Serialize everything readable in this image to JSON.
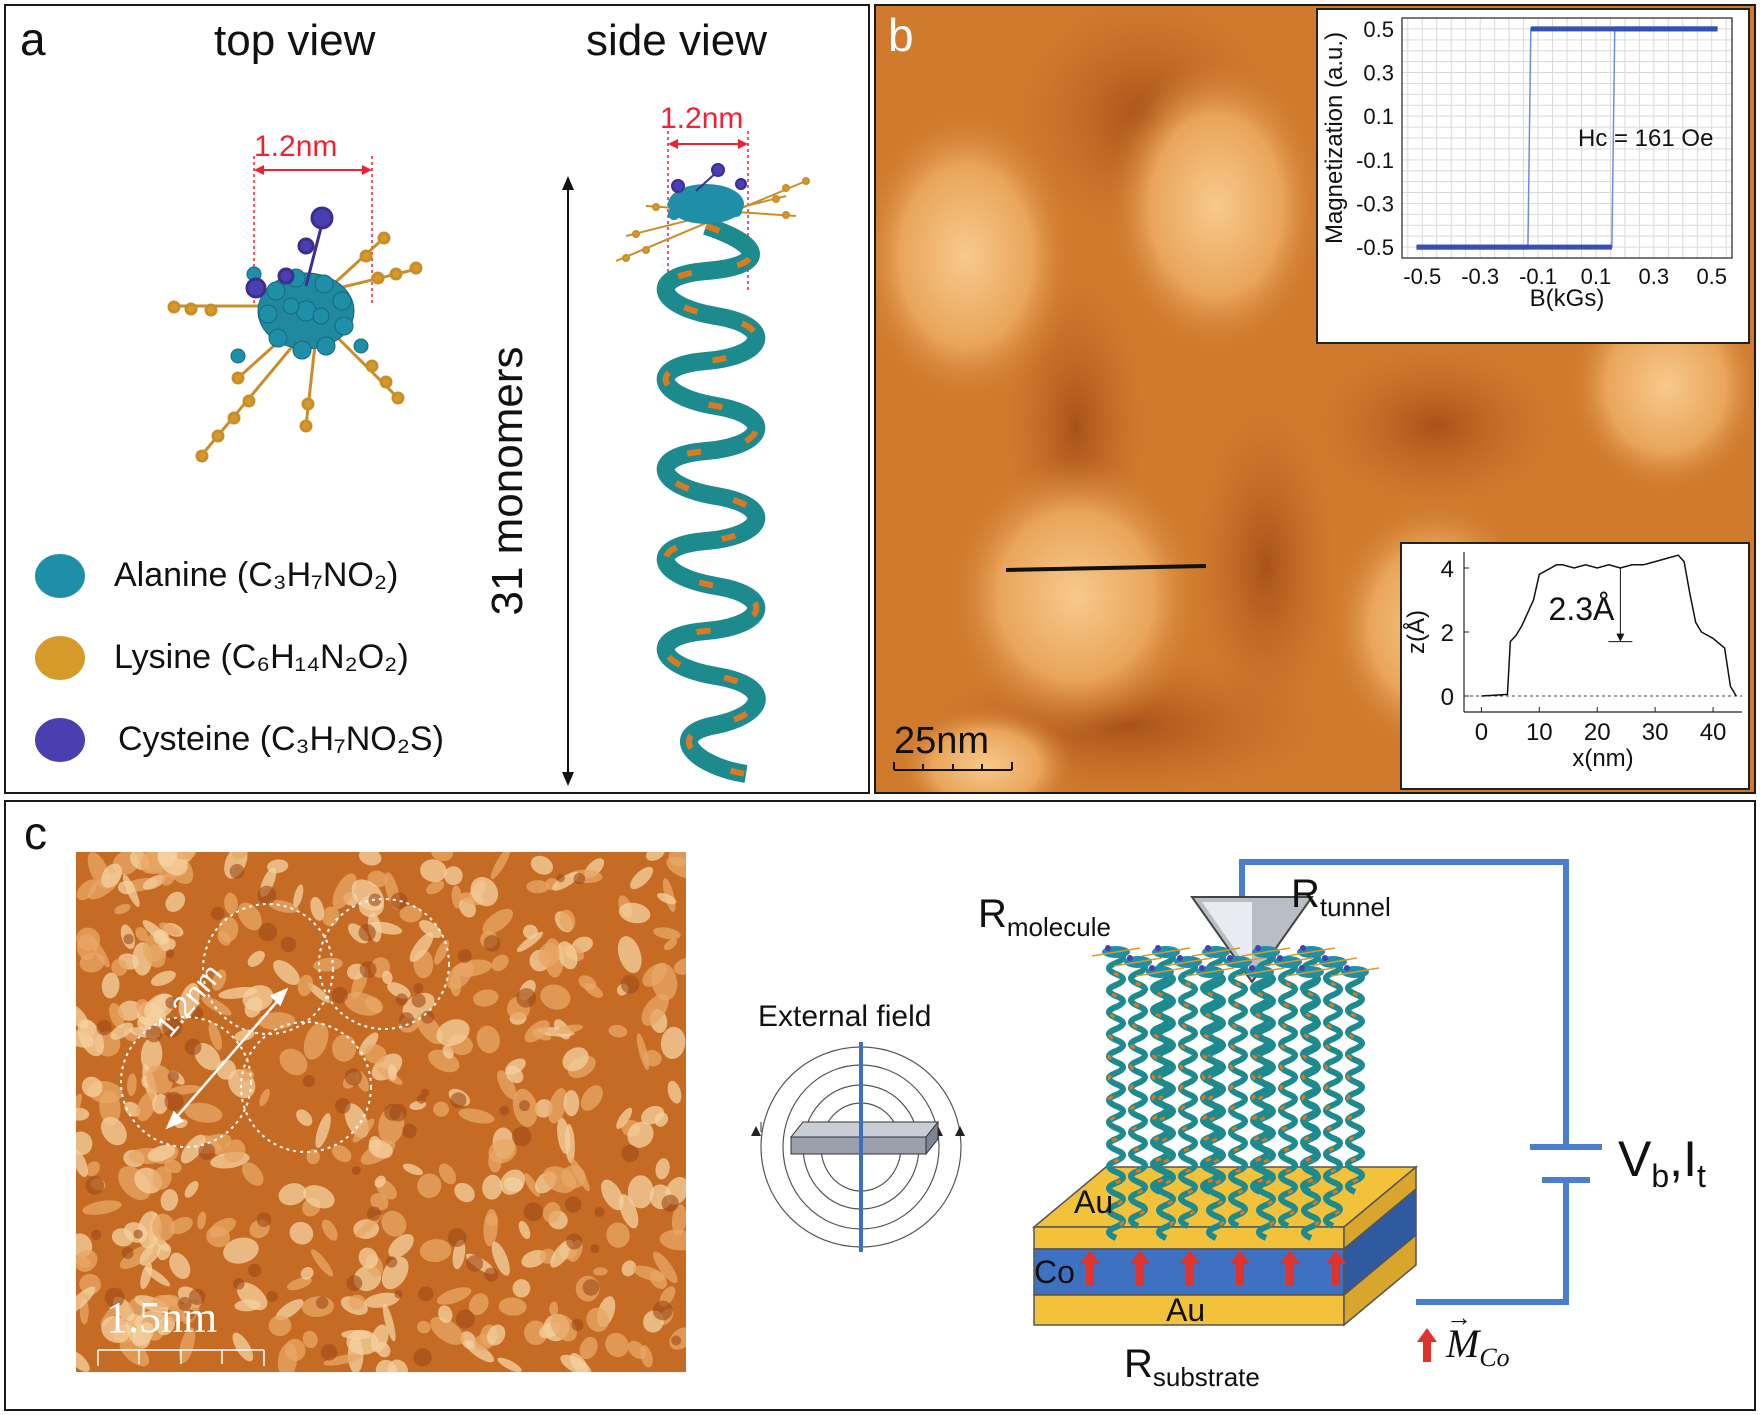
{
  "panel_a": {
    "label": "a",
    "top_view": "top view",
    "side_view": "side view",
    "width_top": "1.2nm",
    "width_side": "1.2nm",
    "length_label": "31 monomers",
    "legend": [
      {
        "name": "Alanine",
        "formula": "(C₃H₇NO₂)",
        "color": "#1f8fa8"
      },
      {
        "name": "Lysine",
        "formula": "(C₆H₁₄N₂O₂)",
        "color": "#d69a2a"
      },
      {
        "name": "Cysteine",
        "formula": "(C₃H₇NO₂S)",
        "color": "#4a3fb0"
      }
    ]
  },
  "panel_b": {
    "label": "b",
    "scale_bar": "25nm",
    "hysteresis": {
      "ylabel": "Magnetization (a.u.)",
      "xlabel": "B(kGs)",
      "yticks": [
        "0.5",
        "0.3",
        "0.1",
        "-0.1",
        "-0.3",
        "-0.5"
      ],
      "xticks": [
        "-0.5",
        "-0.3",
        "-0.1",
        "0.1",
        "0.3",
        "0.5"
      ],
      "annotation": "Hc = 161 Oe"
    },
    "profile": {
      "ylabel": "z(Å)",
      "xlabel": "x(nm)",
      "yticks": [
        "4",
        "2",
        "0"
      ],
      "xticks": [
        "0",
        "10",
        "20",
        "30",
        "40"
      ],
      "annotation": "2.3Å"
    }
  },
  "panel_c": {
    "label": "c",
    "width_label": "1.2nm",
    "scale_bar": "1.5nm",
    "external_field": "External field",
    "r_tunnel": {
      "main": "R",
      "sub": "tunnel"
    },
    "r_molecule": {
      "main": "R",
      "sub": "molecule"
    },
    "r_substrate": {
      "main": "R",
      "sub": "substrate"
    },
    "bias": {
      "v": "V",
      "v_sub": "b",
      "sep": ",",
      "i": "I",
      "i_sub": "t"
    },
    "layer_au_top": "Au",
    "layer_co": "Co",
    "layer_au_bottom": "Au",
    "m_co": {
      "main": "M",
      "sub": "Co"
    }
  },
  "chart_data": [
    {
      "type": "line",
      "title": "",
      "xlabel": "B(kGs)",
      "ylabel": "Magnetization (a.u.)",
      "xlim": [
        -0.57,
        0.57
      ],
      "ylim": [
        -0.55,
        0.55
      ],
      "grid": true,
      "annotation": "Hc = 161 Oe",
      "series": [
        {
          "x": [
            -0.52,
            -0.3,
            -0.135,
            -0.125,
            0.0,
            0.15,
            0.3,
            0.52
          ],
          "y": [
            -0.5,
            -0.5,
            -0.5,
            0.5,
            0.5,
            0.5,
            0.5,
            0.5
          ]
        },
        {
          "x": [
            0.52,
            0.3,
            0.165,
            0.155,
            0.0,
            -0.15,
            -0.3,
            -0.52
          ],
          "y": [
            0.5,
            0.5,
            0.5,
            -0.5,
            -0.5,
            -0.5,
            -0.5,
            -0.5
          ]
        }
      ]
    },
    {
      "type": "line",
      "title": "",
      "xlabel": "x(nm)",
      "ylabel": "z(Å)",
      "xlim": [
        -3,
        45
      ],
      "ylim": [
        -0.5,
        4.5
      ],
      "grid": false,
      "annotation": "2.3Å",
      "series": [
        {
          "x": [
            0,
            4.5,
            5,
            6,
            7,
            8,
            9,
            10,
            11,
            12,
            13,
            14,
            16,
            18,
            20,
            22,
            24,
            26,
            28,
            30,
            32,
            34,
            35,
            36,
            37,
            38,
            40,
            42,
            43,
            44
          ],
          "y": [
            0,
            0.05,
            1.7,
            1.9,
            2.2,
            2.6,
            3.0,
            3.8,
            3.9,
            4.0,
            4.1,
            4.1,
            4.0,
            4.1,
            4.0,
            4.1,
            4.0,
            4.1,
            4.1,
            4.2,
            4.3,
            4.4,
            4.2,
            3.2,
            2.3,
            2.0,
            1.8,
            1.5,
            0.3,
            0.0
          ]
        }
      ]
    }
  ]
}
